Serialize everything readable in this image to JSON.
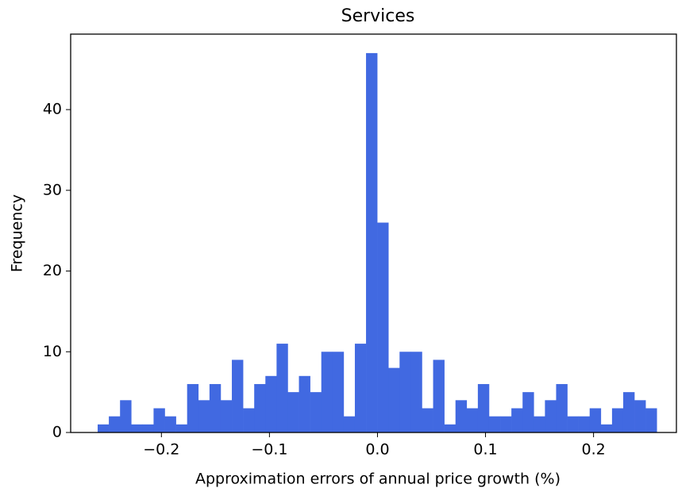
{
  "chart_data": {
    "type": "histogram",
    "title": "Services",
    "xlabel": "Approximation errors of annual price growth (%)",
    "ylabel": "Frequency",
    "bins": [
      -0.259,
      -0.24865,
      -0.2383,
      -0.22795,
      -0.2176,
      -0.20725,
      -0.1969,
      -0.18655,
      -0.1762,
      -0.16585,
      -0.1555,
      -0.14515,
      -0.1348,
      -0.12445,
      -0.1141,
      -0.10375,
      -0.0934,
      -0.08305,
      -0.0727,
      -0.06235,
      -0.052,
      -0.04165,
      -0.0313,
      -0.02095,
      -0.0106,
      -0.00025,
      0.0101,
      0.02045,
      0.0308,
      0.04115,
      0.0515,
      0.06185,
      0.0722,
      0.08255,
      0.0929,
      0.10325,
      0.1136,
      0.12395,
      0.1343,
      0.14465,
      0.155,
      0.16535,
      0.1757,
      0.18605,
      0.1964,
      0.20675,
      0.2171,
      0.22745,
      0.2378,
      0.24815,
      0.2585
    ],
    "values": [
      1,
      2,
      4,
      1,
      1,
      3,
      2,
      1,
      6,
      4,
      6,
      4,
      9,
      3,
      6,
      7,
      11,
      5,
      7,
      5,
      10,
      10,
      2,
      11,
      47,
      26,
      8,
      10,
      10,
      3,
      9,
      1,
      4,
      3,
      6,
      2,
      2,
      3,
      5,
      2,
      4,
      6,
      2,
      2,
      3,
      1,
      3,
      5,
      4,
      3
    ],
    "color": "#4169e1",
    "xlim": [
      -0.284,
      0.2767
    ],
    "ylim": [
      0,
      49.35
    ],
    "xticks": [
      {
        "value": -0.2,
        "label": "−0.2"
      },
      {
        "value": -0.1,
        "label": "−0.1"
      },
      {
        "value": 0,
        "label": "0.0"
      },
      0.1,
      0.2
    ],
    "yticks": [
      0,
      10,
      20,
      30,
      40
    ]
  }
}
